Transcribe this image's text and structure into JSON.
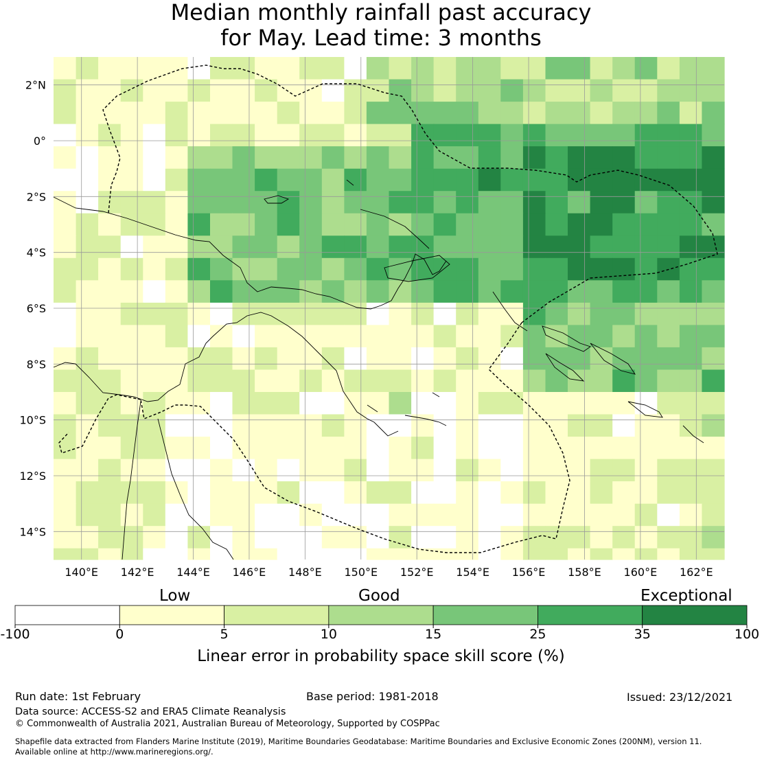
{
  "title": {
    "line1": "Median monthly rainfall past accuracy",
    "line2": "for May. Lead time: 3 months"
  },
  "map": {
    "lon_range": [
      139,
      163
    ],
    "lat_range": [
      -15,
      3
    ],
    "grid_cell_deg": 0.8,
    "lon_ticks": [
      "140°E",
      "142°E",
      "144°E",
      "146°E",
      "148°E",
      "150°E",
      "152°E",
      "154°E",
      "156°E",
      "158°E",
      "160°E",
      "162°E"
    ],
    "lat_ticks": [
      "2°N",
      "0°",
      "2°S",
      "4°S",
      "6°S",
      "8°S",
      "10°S",
      "12°S",
      "14°S"
    ],
    "grid_color": "#999999",
    "boundary_style": "dashed",
    "coastline_color": "#000000"
  },
  "colorbar": {
    "category_labels": {
      "low": "Low",
      "good": "Good",
      "exceptional": "Exceptional"
    },
    "tick_labels": [
      "-100",
      "0",
      "5",
      "10",
      "15",
      "25",
      "35",
      "100"
    ],
    "colors": [
      "#ffffff",
      "#ffffcc",
      "#d9f0a3",
      "#addd8e",
      "#78c679",
      "#41ab5d",
      "#238443"
    ],
    "axis_label": "Linear error in probability space skill score (%)"
  },
  "footer": {
    "run_date": "Run date: 1st February",
    "base_period": "Base period: 1981-2018",
    "issued": "Issued: 23/12/2021",
    "data_source": "Data source: ACCESS-S2 and ERA5 Climate Reanalysis",
    "copyright": "© Commonwealth of Australia 2021, Australian Bureau of Meteorology, Supported by COSPPac",
    "shapefile_line1": "Shapefile data extracted from Flanders Marine Institute (2019), Maritime Boundaries Geodatabase: Maritime Boundaries and Exclusive Economic Zones (200NM), version 11.",
    "shapefile_line2": "Available online at http://www.marineregions.org/."
  }
}
